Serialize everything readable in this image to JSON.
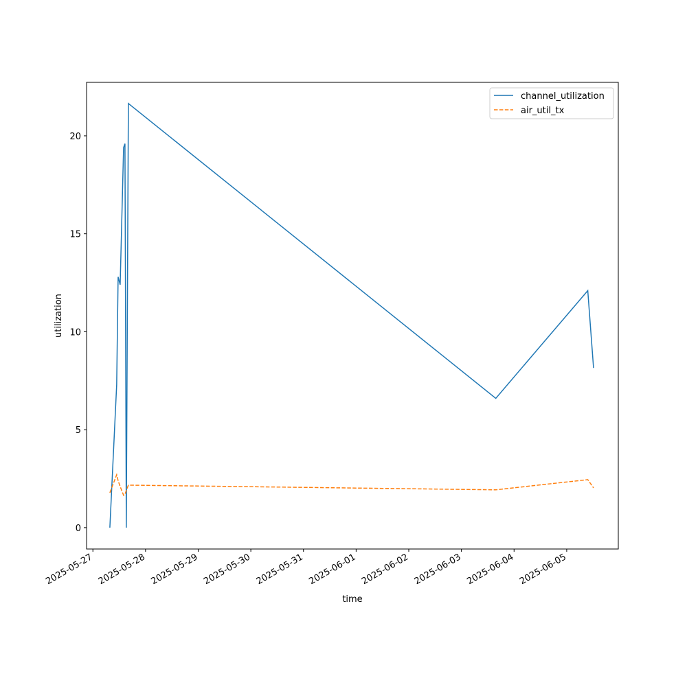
{
  "chart_data": {
    "type": "line",
    "x": [
      "2025-05-27 07:44",
      "2025-05-27 10:51",
      "2025-05-27 11:30",
      "2025-05-27 12:26",
      "2025-05-27 14:00",
      "2025-05-27 14:37",
      "2025-05-27 15:14",
      "2025-05-27 16:11",
      "2025-06-03 15:40",
      "2025-06-05 09:36",
      "2025-06-05 12:14"
    ],
    "series": [
      {
        "name": "channel_utilization",
        "color": "#1f77b4",
        "dash": false,
        "values": [
          0,
          7.3,
          12.8,
          12.4,
          19.4,
          19.6,
          0,
          21.65,
          6.6,
          12.1,
          8.15
        ]
      },
      {
        "name": "air_util_tx",
        "color": "#ff7f0e",
        "dash": true,
        "values": [
          1.78,
          2.7,
          2.4,
          2.1,
          1.65,
          1.7,
          1.9,
          2.17,
          1.93,
          2.45,
          2.03
        ]
      }
    ],
    "xlabel": "time",
    "ylabel": "utilization",
    "xlim": [
      "2025-05-26 21:07",
      "2025-06-05 23:31"
    ],
    "xticks": [
      "2025-05-27",
      "2025-05-28",
      "2025-05-29",
      "2025-05-30",
      "2025-05-31",
      "2025-06-01",
      "2025-06-02",
      "2025-06-03",
      "2025-06-04",
      "2025-06-05"
    ],
    "ylim": [
      -1.09,
      22.73
    ],
    "yticks": [
      0,
      5,
      10,
      15,
      20
    ],
    "grid": false,
    "legend": "upper right"
  }
}
